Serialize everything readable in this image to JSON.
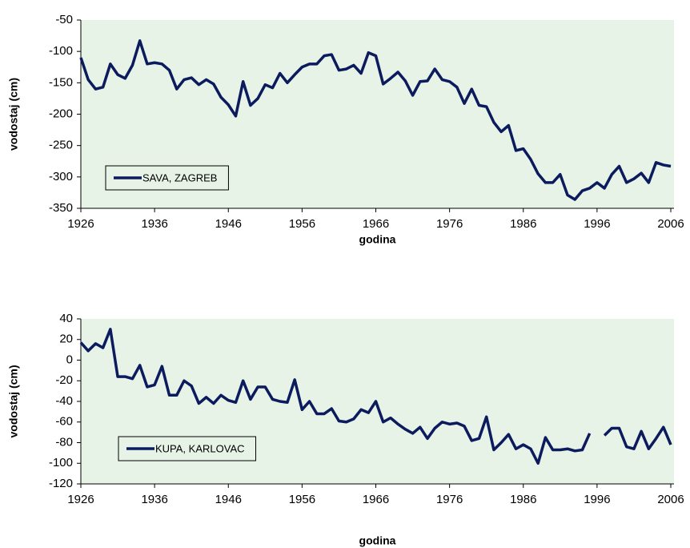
{
  "chart_data": [
    {
      "type": "line",
      "xlabel": "godina",
      "ylabel": "vodostaj (cm)",
      "x": [
        1926,
        1927,
        1928,
        1929,
        1930,
        1931,
        1932,
        1933,
        1934,
        1935,
        1936,
        1937,
        1938,
        1939,
        1940,
        1941,
        1942,
        1943,
        1944,
        1945,
        1946,
        1947,
        1948,
        1949,
        1950,
        1951,
        1952,
        1953,
        1954,
        1955,
        1956,
        1957,
        1958,
        1959,
        1960,
        1961,
        1962,
        1963,
        1964,
        1965,
        1966,
        1967,
        1968,
        1969,
        1970,
        1971,
        1972,
        1973,
        1974,
        1975,
        1976,
        1977,
        1978,
        1979,
        1980,
        1981,
        1982,
        1983,
        1984,
        1985,
        1986,
        1987,
        1988,
        1989,
        1990,
        1991,
        1992,
        1993,
        1994,
        1995,
        1996,
        1997,
        1998,
        1999,
        2000,
        2001,
        2002,
        2003,
        2004,
        2005,
        2006
      ],
      "series": [
        {
          "name": "SAVA, ZAGREB",
          "color": "#0c1a5e",
          "values": [
            -110,
            -145,
            -160,
            -157,
            -120,
            -137,
            -143,
            -122,
            -83,
            -120,
            -118,
            -120,
            -130,
            -160,
            -145,
            -142,
            -153,
            -145,
            -152,
            -173,
            -185,
            -203,
            -148,
            -186,
            -175,
            -153,
            -158,
            -135,
            -150,
            -137,
            -125,
            -120,
            -120,
            -107,
            -105,
            -130,
            -128,
            -122,
            -135,
            -102,
            -107,
            -152,
            -143,
            -133,
            -147,
            -170,
            -148,
            -147,
            -128,
            -145,
            -148,
            -157,
            -183,
            -160,
            -186,
            -188,
            -213,
            -228,
            -218,
            -258,
            -255,
            -272,
            -295,
            -309,
            -309,
            -296,
            -329,
            -336,
            -322,
            -318,
            -309,
            -318,
            -296,
            -283,
            -309,
            -303,
            -294,
            -309,
            -277,
            -281,
            -283
          ]
        }
      ],
      "xlim": [
        1926,
        2006
      ],
      "xticks": [
        1926,
        1936,
        1946,
        1956,
        1966,
        1976,
        1986,
        1996,
        2006
      ],
      "ylim": [
        -350,
        -50
      ],
      "yticks": [
        -350,
        -300,
        -250,
        -200,
        -150,
        -100,
        -50
      ],
      "legend": "lower left",
      "background": "#e6f3e6"
    },
    {
      "type": "line",
      "xlabel": "godina",
      "ylabel": "vodostaj (cm)",
      "x": [
        1926,
        1927,
        1928,
        1929,
        1930,
        1931,
        1932,
        1933,
        1934,
        1935,
        1936,
        1937,
        1938,
        1939,
        1940,
        1941,
        1942,
        1943,
        1944,
        1945,
        1946,
        1947,
        1948,
        1949,
        1950,
        1951,
        1952,
        1953,
        1954,
        1955,
        1956,
        1957,
        1958,
        1959,
        1960,
        1961,
        1962,
        1963,
        1964,
        1965,
        1966,
        1967,
        1968,
        1969,
        1970,
        1971,
        1972,
        1973,
        1974,
        1975,
        1976,
        1977,
        1978,
        1979,
        1980,
        1981,
        1982,
        1983,
        1984,
        1985,
        1986,
        1987,
        1988,
        1989,
        1990,
        1991,
        1992,
        1993,
        1994,
        1995,
        1996,
        1997,
        1998,
        1999,
        2000,
        2001,
        2002,
        2003,
        2004,
        2005,
        2006
      ],
      "series": [
        {
          "name": "KUPA, KARLOVAC",
          "color": "#0c1a5e",
          "values": [
            17,
            9,
            16,
            12,
            30,
            -16,
            -16,
            -18,
            -5,
            -26,
            -24,
            -6,
            -34,
            -34,
            -20,
            -25,
            -42,
            -36,
            -42,
            -34,
            -39,
            -41,
            -20,
            -38,
            -26,
            -26,
            -38,
            -40,
            -41,
            -19,
            -48,
            -40,
            -52,
            -52,
            -47,
            -59,
            -60,
            -57,
            -48,
            -51,
            -40,
            -60,
            -56,
            -62,
            -67,
            -71,
            -65,
            -76,
            -66,
            -60,
            -62,
            -61,
            -64,
            -78,
            -76,
            -55,
            -87,
            -80,
            -72,
            -86,
            -82,
            -86,
            -100,
            -75,
            -87,
            -87,
            -86,
            -88,
            -87,
            -71,
            null,
            -73,
            -66,
            -66,
            -84,
            -86,
            -69,
            -86,
            -76,
            -65,
            -82
          ]
        }
      ],
      "xlim": [
        1926,
        2006
      ],
      "xticks": [
        1926,
        1936,
        1946,
        1956,
        1966,
        1976,
        1986,
        1996,
        2006
      ],
      "ylim": [
        -120,
        40
      ],
      "yticks": [
        -120,
        -100,
        -80,
        -60,
        -40,
        -20,
        0,
        20,
        40
      ],
      "legend": "lower left",
      "background": "#e6f3e6"
    }
  ]
}
